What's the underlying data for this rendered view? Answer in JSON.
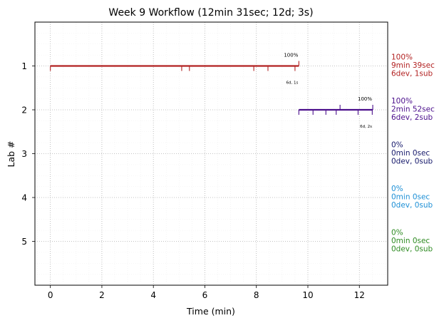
{
  "chart_data": {
    "type": "gantt",
    "title": "Week 9 Workflow (12min 31sec; 12d; 3s)",
    "xlabel": "Time (min)",
    "ylabel": "Lab #",
    "xlim": [
      -0.6,
      13.1
    ],
    "ylim": [
      6,
      0
    ],
    "x_ticks": [
      0,
      2,
      4,
      6,
      8,
      10,
      12
    ],
    "y_ticks": [
      1,
      2,
      3,
      4,
      5
    ],
    "grid": true,
    "labs": [
      {
        "lab": 1,
        "color": "#b22222",
        "start": 0,
        "end": 9.65,
        "dev_marks": [
          0,
          5.1,
          5.4,
          7.9,
          8.45,
          9.5
        ],
        "sub_marks": [
          9.65
        ],
        "percent_label": "100%",
        "counts_label": "6d, 1s",
        "side_lines": [
          "100%",
          "9min 39sec",
          "6dev, 1sub"
        ]
      },
      {
        "lab": 2,
        "color": "#4b0f8c",
        "start": 9.65,
        "end": 12.52,
        "dev_marks": [
          9.65,
          10.2,
          10.7,
          11.1,
          11.95,
          12.5
        ],
        "sub_marks": [
          11.25,
          12.52
        ],
        "percent_label": "100%",
        "counts_label": "6d, 2s",
        "side_lines": [
          "100%",
          "2min 52sec",
          "6dev, 2sub"
        ]
      },
      {
        "lab": 3,
        "color": "#16196b",
        "side_lines": [
          "0%",
          "0min 0sec",
          "0dev, 0sub"
        ]
      },
      {
        "lab": 4,
        "color": "#1e90d6",
        "side_lines": [
          "0%",
          "0min 0sec",
          "0dev, 0sub"
        ]
      },
      {
        "lab": 5,
        "color": "#2e8b22",
        "side_lines": [
          "0%",
          "0min 0sec",
          "0dev, 0sub"
        ]
      }
    ]
  }
}
